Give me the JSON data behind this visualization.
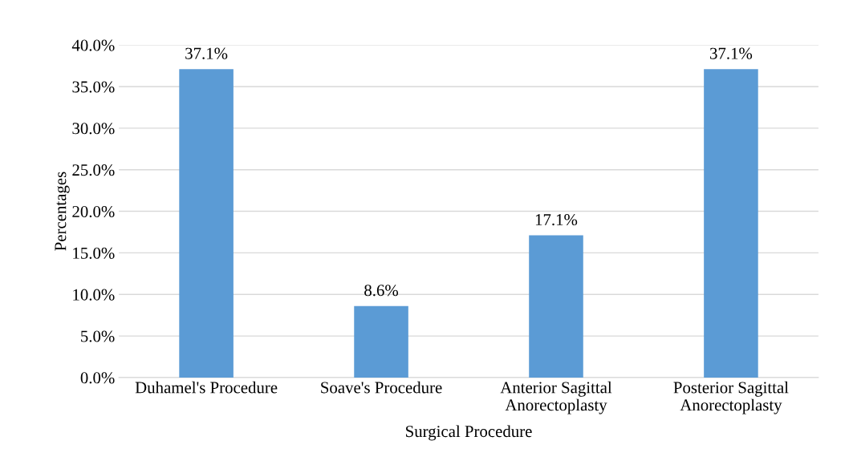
{
  "chart_data": {
    "type": "bar",
    "xlabel": "Surgical Procedure",
    "ylabel": "Percentages",
    "categories": [
      "Duhamel's Procedure",
      "Soave's Procedure",
      "Anterior Sagittal\nAnorectoplasty",
      "Posterior Sagittal\nAnorectoplasty"
    ],
    "values": [
      37.1,
      8.6,
      17.1,
      37.1
    ],
    "value_labels": [
      "37.1%",
      "8.6%",
      "17.1%",
      "37.1%"
    ],
    "color": "#5b9bd5",
    "ylim": [
      0,
      40
    ],
    "yticks": [
      {
        "value": 0,
        "label": "0.0%"
      },
      {
        "value": 5,
        "label": "5.0%"
      },
      {
        "value": 10,
        "label": "10.0%"
      },
      {
        "value": 15,
        "label": "15.0%"
      },
      {
        "value": 20,
        "label": "20.0%"
      },
      {
        "value": 25,
        "label": "25.0%"
      },
      {
        "value": 30,
        "label": "30.0%"
      },
      {
        "value": 35,
        "label": "35.0%"
      },
      {
        "value": 40,
        "label": "40.0%"
      }
    ],
    "grid": "y"
  }
}
